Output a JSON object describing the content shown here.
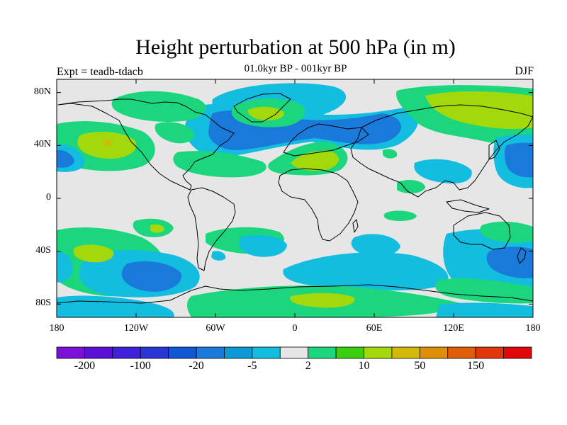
{
  "title": "Height perturbation at 500 hPa (in m)",
  "subtitle": "01.0kyr BP - 001kyr BP",
  "left_label": "Expt = teadb-tdacb",
  "right_label": "DJF",
  "map": {
    "projection": "cylindrical equidistant",
    "lon_range": [
      -180,
      180
    ],
    "lat_range": [
      -90,
      90
    ],
    "lon_ticks": [
      {
        "value": -180,
        "label": "180"
      },
      {
        "value": -120,
        "label": "120W"
      },
      {
        "value": -60,
        "label": "60W"
      },
      {
        "value": 0,
        "label": "0"
      },
      {
        "value": 60,
        "label": "60E"
      },
      {
        "value": 120,
        "label": "120E"
      },
      {
        "value": 180,
        "label": "180"
      }
    ],
    "lat_ticks": [
      {
        "value": 80,
        "label": "80N"
      },
      {
        "value": 40,
        "label": "40N"
      },
      {
        "value": 0,
        "label": "0"
      },
      {
        "value": -40,
        "label": "40S"
      },
      {
        "value": -80,
        "label": "80S"
      }
    ],
    "background_color": "#e6e6e6"
  },
  "colorbar": {
    "colors": [
      "#7a10d6",
      "#5c10d6",
      "#4020d8",
      "#2a36d4",
      "#1157d4",
      "#1a7ad9",
      "#0f99d4",
      "#12bde0",
      "#e6e6e6",
      "#1cd67e",
      "#3bcf0f",
      "#a3d80a",
      "#d4b80a",
      "#e08f08",
      "#e05d0a",
      "#e0380a",
      "#e00808"
    ],
    "tick_labels": [
      "-200",
      "-100",
      "-20",
      "-5",
      "2",
      "10",
      "50",
      "150"
    ]
  },
  "chart_data": {
    "type": "heatmap",
    "title": "Height perturbation at 500 hPa (in m)",
    "subtitle": "01.0kyr BP - 001kyr BP",
    "variable": "500 hPa geopotential height perturbation",
    "units": "m",
    "season": "DJF",
    "experiment": "teadb-tdacb",
    "contour_levels": [
      -200,
      -100,
      -20,
      -5,
      2,
      10,
      50,
      150
    ],
    "regions": [
      {
        "name": "north-atlantic-negative-anomaly",
        "lon": [
          -70,
          20
        ],
        "lat": [
          35,
          80
        ],
        "class": "-20 to -5"
      },
      {
        "name": "east-pacific-positive-anomaly",
        "lon": [
          -170,
          -90
        ],
        "lat": [
          25,
          55
        ],
        "class": "10 to 50"
      },
      {
        "name": "greenland-positive-anomaly",
        "lon": [
          -45,
          0
        ],
        "lat": [
          55,
          85
        ],
        "class": "10 to 50"
      },
      {
        "name": "mediterranean-positive-anomaly",
        "lon": [
          0,
          40
        ],
        "lat": [
          25,
          50
        ],
        "class": "10 to 50"
      },
      {
        "name": "siberia-positive-anomaly",
        "lon": [
          60,
          180
        ],
        "lat": [
          55,
          90
        ],
        "class": "10 to 50"
      },
      {
        "name": "northwest-pacific-negative-anomaly",
        "lon": [
          110,
          180
        ],
        "lat": [
          15,
          50
        ],
        "class": "-20 to -5"
      },
      {
        "name": "south-pacific-positive-anomaly",
        "lon": [
          -180,
          -110
        ],
        "lat": [
          -70,
          -20
        ],
        "class": "10 to 50"
      },
      {
        "name": "south-pacific-negative-anomaly",
        "lon": [
          -140,
          -60
        ],
        "lat": [
          -80,
          -40
        ],
        "class": "-20 to -5"
      },
      {
        "name": "south-atlantic-positive-anomaly",
        "lon": [
          -30,
          30
        ],
        "lat": [
          -40,
          -10
        ],
        "class": "2 to 10"
      },
      {
        "name": "southern-ocean-negative-anomaly",
        "lon": [
          0,
          100
        ],
        "lat": [
          -75,
          -40
        ],
        "class": "-5 to -2"
      },
      {
        "name": "antarctic-positive-anomaly",
        "lon": [
          -20,
          100
        ],
        "lat": [
          -90,
          -70
        ],
        "class": "2 to 10"
      },
      {
        "name": "new-zealand-negative-anomaly",
        "lon": [
          140,
          180
        ],
        "lat": [
          -65,
          -35
        ],
        "class": "-20 to -5"
      }
    ]
  }
}
